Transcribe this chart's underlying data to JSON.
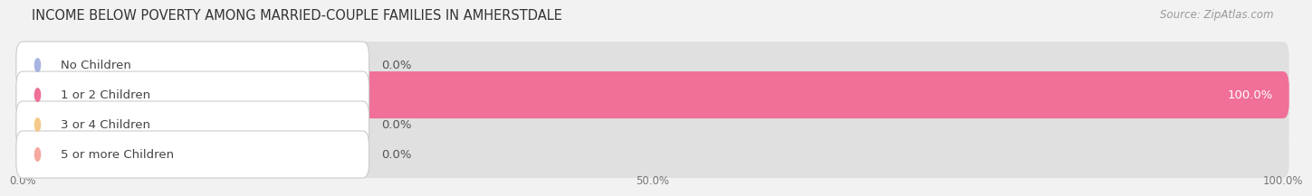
{
  "title": "INCOME BELOW POVERTY AMONG MARRIED-COUPLE FAMILIES IN AMHERSTDALE",
  "source": "Source: ZipAtlas.com",
  "categories": [
    "No Children",
    "1 or 2 Children",
    "3 or 4 Children",
    "5 or more Children"
  ],
  "values": [
    0.0,
    100.0,
    0.0,
    0.0
  ],
  "bar_colors": [
    "#a8b4e0",
    "#f07098",
    "#f5c98a",
    "#f5a8a0"
  ],
  "label_dot_colors": [
    "#a8b4e0",
    "#f07098",
    "#f5c98a",
    "#f5a8a0"
  ],
  "background_color": "#f2f2f2",
  "bar_bg_color": "#e0e0e0",
  "xticklabels": [
    "0.0%",
    "50.0%",
    "100.0%"
  ],
  "value_labels": [
    "0.0%",
    "100.0%",
    "0.0%",
    "0.0%"
  ],
  "title_fontsize": 10.5,
  "source_fontsize": 8.5,
  "bar_height": 0.58,
  "bar_label_fontsize": 9.5,
  "value_label_fontsize": 9.5
}
